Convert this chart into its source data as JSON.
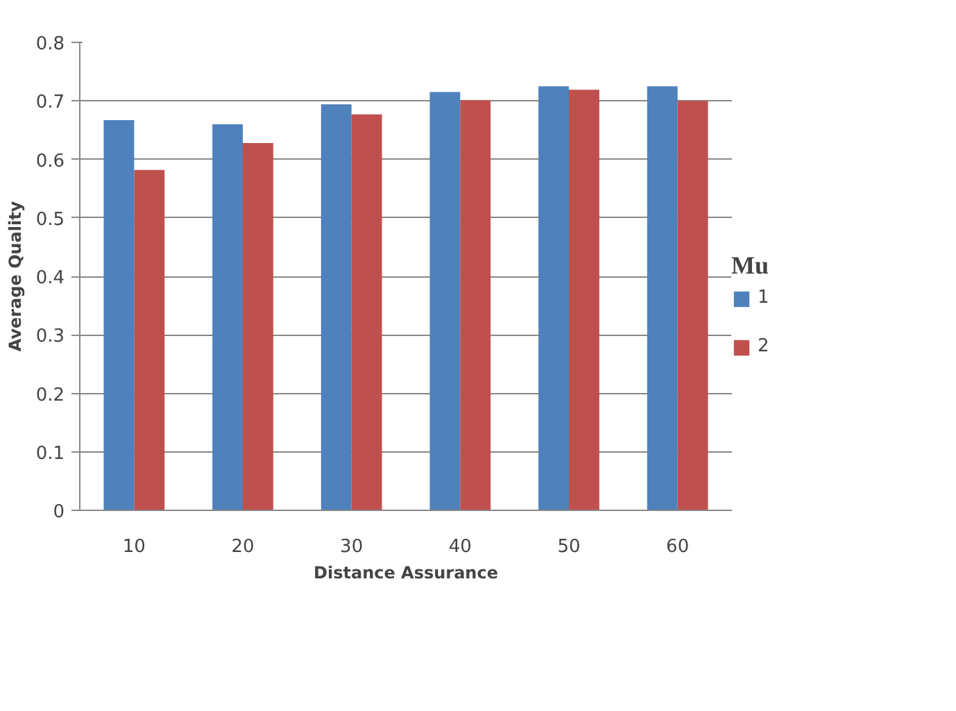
{
  "chart_data": {
    "type": "bar",
    "xlabel": "Distance Assurance",
    "ylabel": "Average Quality",
    "legend_title": "Mu",
    "categories": [
      "10",
      "20",
      "30",
      "40",
      "50",
      "60"
    ],
    "series": [
      {
        "name": "1",
        "color": "#4f81bd",
        "values": [
          0.667,
          0.66,
          0.694,
          0.715,
          0.725,
          0.725
        ]
      },
      {
        "name": "2",
        "color": "#c0504d",
        "values": [
          0.582,
          0.628,
          0.677,
          0.701,
          0.719,
          0.7
        ]
      }
    ],
    "ylim": [
      0,
      0.8
    ],
    "yticks": [
      0,
      0.1,
      0.2,
      0.3,
      0.4,
      0.5,
      0.6,
      0.7,
      0.8
    ],
    "grid": "y",
    "legend": "right"
  }
}
